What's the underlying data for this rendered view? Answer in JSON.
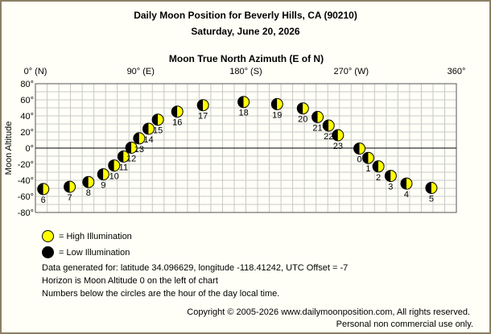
{
  "header": {
    "title": "Daily Moon Position for Beverly Hills, CA (90210)",
    "date": "Saturday, June 20, 2026"
  },
  "chart_data": {
    "type": "scatter",
    "title": "Daily Moon Position for Beverly Hills, CA (90210)",
    "subtitle": "Saturday, June 20, 2026",
    "xlabel": "Moon True North Azimuth (E of N)",
    "ylabel": "Moon Altitude",
    "xlim": [
      0,
      360
    ],
    "ylim": [
      -80,
      80
    ],
    "x_ticks": [
      {
        "value": 0,
        "label": "0° (N)"
      },
      {
        "value": 90,
        "label": "90° (E)"
      },
      {
        "value": 180,
        "label": "180° (S)"
      },
      {
        "value": 270,
        "label": "270° (W)"
      },
      {
        "value": 360,
        "label": "360°"
      }
    ],
    "y_ticks": [
      {
        "value": 80,
        "label": "80°"
      },
      {
        "value": 60,
        "label": "60°"
      },
      {
        "value": 40,
        "label": "40°"
      },
      {
        "value": 20,
        "label": "20°"
      },
      {
        "value": 0,
        "label": "0°"
      },
      {
        "value": -20,
        "label": "-20°"
      },
      {
        "value": -40,
        "label": "-40°"
      },
      {
        "value": -60,
        "label": "-60°"
      },
      {
        "value": -80,
        "label": "-80°"
      }
    ],
    "grid": true,
    "horizon_line": 0,
    "points": [
      {
        "hour": "0",
        "azimuth": 277.1,
        "altitude": -0.6
      },
      {
        "hour": "1",
        "azimuth": 284.6,
        "altitude": -12.2
      },
      {
        "hour": "2",
        "azimuth": 293.3,
        "altitude": -22.8
      },
      {
        "hour": "3",
        "azimuth": 303.8,
        "altitude": -34.6
      },
      {
        "hour": "4",
        "azimuth": 317.3,
        "altitude": -44.1
      },
      {
        "hour": "5",
        "azimuth": 338.6,
        "altitude": -49.5
      },
      {
        "hour": "6",
        "azimuth": 6.7,
        "altitude": -50.9
      },
      {
        "hour": "7",
        "azimuth": 29.3,
        "altitude": -48.1
      },
      {
        "hour": "8",
        "azimuth": 45.3,
        "altitude": -42.2
      },
      {
        "hour": "9",
        "azimuth": 58.0,
        "altitude": -32.6
      },
      {
        "hour": "10",
        "azimuth": 67.3,
        "altitude": -21.6
      },
      {
        "hour": "11",
        "azimuth": 75.3,
        "altitude": -10.5
      },
      {
        "hour": "12",
        "azimuth": 82.0,
        "altitude": 0.5
      },
      {
        "hour": "13",
        "azimuth": 88.7,
        "altitude": 12.1
      },
      {
        "hour": "14",
        "azimuth": 96.7,
        "altitude": 24.0
      },
      {
        "hour": "15",
        "azimuth": 104.7,
        "altitude": 35.3
      },
      {
        "hour": "16",
        "azimuth": 121.3,
        "altitude": 45.3
      },
      {
        "hour": "17",
        "azimuth": 143.3,
        "altitude": 53.3
      },
      {
        "hour": "18",
        "azimuth": 178.0,
        "altitude": 57.3
      },
      {
        "hour": "19",
        "azimuth": 206.7,
        "altitude": 54.6
      },
      {
        "hour": "20",
        "azimuth": 228.7,
        "altitude": 49.3
      },
      {
        "hour": "21",
        "azimuth": 241.3,
        "altitude": 38.6
      },
      {
        "hour": "22",
        "azimuth": 250.7,
        "altitude": 28.0
      },
      {
        "hour": "23",
        "azimuth": 258.7,
        "altitude": 16.0
      }
    ]
  },
  "legend": {
    "high_label": "= High Illumination",
    "low_label": "= Low Illumination",
    "high_color": "#ffff00",
    "low_color": "#000000"
  },
  "info": {
    "line1": "Data generated for: latitude 34.096629, longitude -118.41242, UTC Offset = -7",
    "line2": "Horizon is Moon Altitude 0 on the left of chart",
    "line3": "Numbers below the circles are the hour of the day local time."
  },
  "footer": {
    "copyright": "Copyright © 2005-2026 www.dailymoonposition.com, All rights reserved.",
    "notice": "Personal non commercial use only."
  },
  "colors": {
    "background": "#fffff7",
    "border": "#8b8064",
    "grid": "#c8c8c8",
    "moon_light": "#ffff00",
    "moon_dark": "#000000"
  }
}
